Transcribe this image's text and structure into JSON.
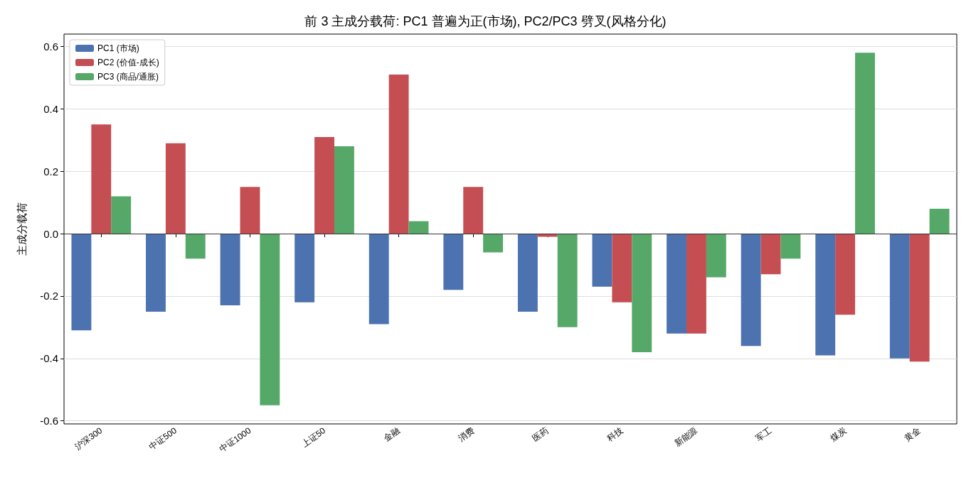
{
  "chart_data": {
    "type": "bar",
    "title": "前 3 主成分载荷: PC1 普遍为正(市场), PC2/PC3 劈叉(风格分化)",
    "ylabel": "主成分载荷",
    "categories": [
      "沪深300",
      "中证500",
      "中证1000",
      "上证50",
      "金融",
      "消费",
      "医药",
      "科技",
      "新能源",
      "军工",
      "煤炭",
      "黄金"
    ],
    "series": [
      {
        "name": "PC1 (市场)",
        "color": "#4c72b0",
        "values": [
          -0.31,
          -0.25,
          -0.23,
          -0.22,
          -0.29,
          -0.18,
          -0.25,
          -0.17,
          -0.32,
          -0.36,
          -0.39,
          -0.4
        ]
      },
      {
        "name": "PC2 (价值-成长)",
        "color": "#c44e52",
        "values": [
          0.35,
          0.29,
          0.15,
          0.31,
          0.51,
          0.15,
          -0.01,
          -0.22,
          -0.32,
          -0.13,
          -0.26,
          -0.41
        ]
      },
      {
        "name": "PC3 (商品/通胀)",
        "color": "#55a868",
        "values": [
          0.12,
          -0.08,
          -0.55,
          0.28,
          0.04,
          -0.06,
          -0.3,
          -0.38,
          -0.14,
          -0.08,
          0.58,
          0.08
        ]
      }
    ],
    "ylim": [
      -0.61,
      0.64
    ],
    "yticks": [
      {
        "value": -0.6,
        "label": "-0.6"
      },
      {
        "value": -0.4,
        "label": "-0.4"
      },
      {
        "value": -0.2,
        "label": "-0.2"
      },
      {
        "value": 0,
        "label": "0.0"
      },
      {
        "value": 0.2,
        "label": "0.2"
      },
      {
        "value": 0.4,
        "label": "0.4"
      },
      {
        "value": 0.6,
        "label": "0.6"
      }
    ],
    "grid": "y",
    "legend": "top left",
    "ref_lines": [
      {
        "axis": "y",
        "value": 0,
        "color": "#333333"
      }
    ]
  }
}
